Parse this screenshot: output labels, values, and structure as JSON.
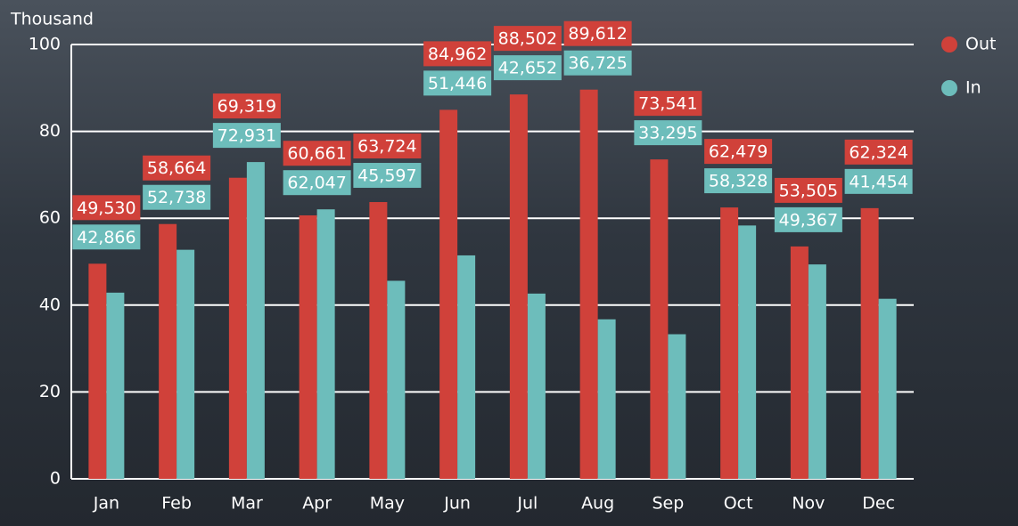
{
  "chart_data": {
    "type": "bar",
    "y_axis_label": "Thousand",
    "categories": [
      "Jan",
      "Feb",
      "Mar",
      "Apr",
      "May",
      "Jun",
      "Jul",
      "Aug",
      "Sep",
      "Oct",
      "Nov",
      "Dec"
    ],
    "series": [
      {
        "name": "Out",
        "color": "#d0413a",
        "values": [
          49.53,
          58.664,
          69.319,
          60.661,
          63.724,
          84.962,
          88.502,
          89.612,
          73.541,
          62.479,
          53.505,
          62.324
        ],
        "value_labels": [
          "49,530",
          "58,664",
          "69,319",
          "60,661",
          "63,724",
          "84,962",
          "88,502",
          "89,612",
          "73,541",
          "62,479",
          "53,505",
          "62,324"
        ]
      },
      {
        "name": "In",
        "color": "#6dbdbb",
        "values": [
          42.866,
          52.738,
          72.931,
          62.047,
          45.597,
          51.446,
          42.652,
          36.725,
          33.295,
          58.328,
          49.367,
          41.454
        ],
        "value_labels": [
          "42,866",
          "52,738",
          "72,931",
          "62,047",
          "45,597",
          "51,446",
          "42,652",
          "36,725",
          "33,295",
          "58,328",
          "49,367",
          "41,454"
        ]
      }
    ],
    "ylim": [
      0,
      100
    ],
    "yticks": [
      0,
      20,
      40,
      60,
      80,
      100
    ],
    "grid": true,
    "legend": "top-right"
  }
}
